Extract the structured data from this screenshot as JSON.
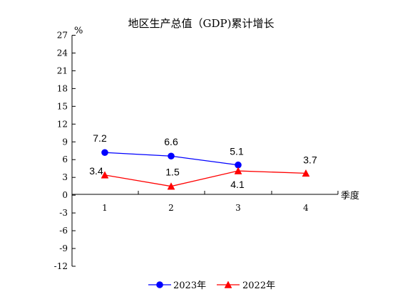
{
  "chart_data": {
    "type": "line",
    "title": "地区生产总值（GDP)累计增长",
    "ylabel": "%",
    "xlabel": "季度",
    "categories": [
      "1",
      "2",
      "3",
      "4"
    ],
    "ylim": [
      -12,
      27
    ],
    "yticks": [
      27,
      24,
      21,
      18,
      15,
      12,
      9,
      6,
      3,
      0,
      -3,
      -6,
      -9,
      -12
    ],
    "grid": false,
    "legend_position": "bottom-center",
    "series": [
      {
        "name": "2023年",
        "values": [
          7.2,
          6.6,
          5.1,
          null
        ],
        "labels": [
          "7.2",
          "6.6",
          "5.1",
          ""
        ],
        "color": "#0000ff",
        "marker": "circle"
      },
      {
        "name": "2022年",
        "values": [
          3.4,
          1.5,
          4.1,
          3.7
        ],
        "labels": [
          "3.4",
          "1.5",
          "4.1",
          "3.7"
        ],
        "color": "#ff0000",
        "marker": "triangle"
      }
    ]
  }
}
